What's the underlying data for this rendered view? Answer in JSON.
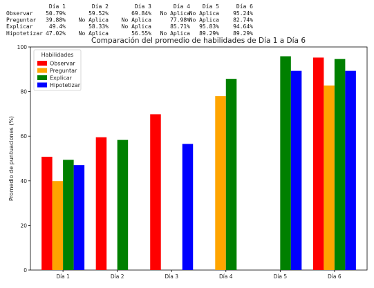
{
  "summary_table": {
    "columns": [
      "Día 1",
      "Día 2",
      "Día 3",
      "Día 4",
      "Día 5",
      "Día 6"
    ],
    "rows": [
      {
        "label": "Observar",
        "cells": [
          "50.79%",
          "59.52%",
          "69.84%",
          "No Aplica",
          "No Aplica",
          "95.24%"
        ]
      },
      {
        "label": "Preguntar",
        "cells": [
          "39.88%",
          "No Aplica",
          "No Aplica",
          "77.98%",
          "No Aplica",
          "82.74%"
        ]
      },
      {
        "label": "Explicar",
        "cells": [
          "49.4%",
          "58.33%",
          "No Aplica",
          "85.71%",
          "95.83%",
          "94.64%"
        ]
      },
      {
        "label": "Hipotetizar",
        "cells": [
          "47.02%",
          "No Aplica",
          "56.55%",
          "No Aplica",
          "89.29%",
          "89.29%"
        ]
      }
    ]
  },
  "chart_data": {
    "type": "bar",
    "title": "Comparación del promedio de habilidades de Día 1 a Día 6",
    "xlabel": "",
    "ylabel": "Promedio de puntuaciones (%)",
    "ylim": [
      0,
      100
    ],
    "yticks": [
      0,
      20,
      40,
      60,
      80,
      100
    ],
    "grid": false,
    "legend": {
      "title": "Habilidades",
      "placement": "top-left"
    },
    "categories": [
      "Día 1",
      "Día 2",
      "Día 3",
      "Día 4",
      "Día 5",
      "Día 6"
    ],
    "series": [
      {
        "name": "Observar",
        "color": "#ff0000",
        "values": [
          50.79,
          59.52,
          69.84,
          null,
          null,
          95.24
        ]
      },
      {
        "name": "Preguntar",
        "color": "#ffa500",
        "values": [
          39.88,
          null,
          null,
          77.98,
          null,
          82.74
        ]
      },
      {
        "name": "Explicar",
        "color": "#008000",
        "values": [
          49.4,
          58.33,
          null,
          85.71,
          95.83,
          94.64
        ]
      },
      {
        "name": "Hipotetizar",
        "color": "#0000ff",
        "values": [
          47.02,
          null,
          56.55,
          null,
          89.29,
          89.29
        ]
      }
    ]
  }
}
